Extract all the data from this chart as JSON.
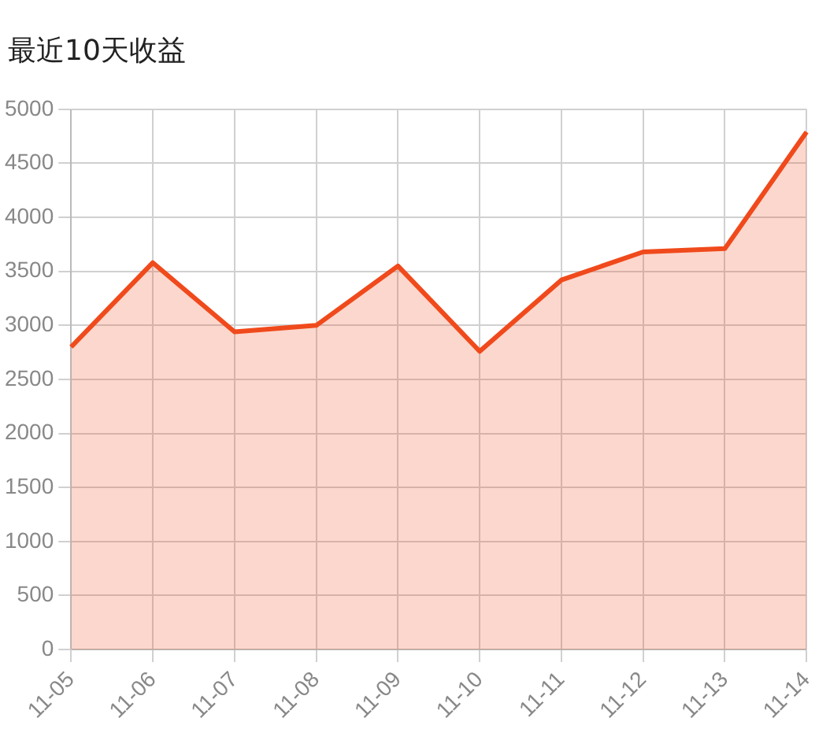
{
  "chart_data": {
    "type": "area",
    "title": "最近10天收益",
    "categories": [
      "11-05",
      "11-06",
      "11-07",
      "11-08",
      "11-09",
      "11-10",
      "11-11",
      "11-12",
      "11-13",
      "11-14"
    ],
    "series": [
      {
        "color": "#f04a1c",
        "values": [
          2800,
          3580,
          2940,
          3000,
          3550,
          2760,
          3420,
          3680,
          3710,
          4790
        ]
      }
    ],
    "ylim": [
      0,
      5000
    ],
    "yticks": [
      0,
      500,
      1000,
      1500,
      2000,
      2500,
      3000,
      3500,
      4000,
      4500,
      5000
    ],
    "grid": true,
    "marker": "none",
    "legend": false
  }
}
